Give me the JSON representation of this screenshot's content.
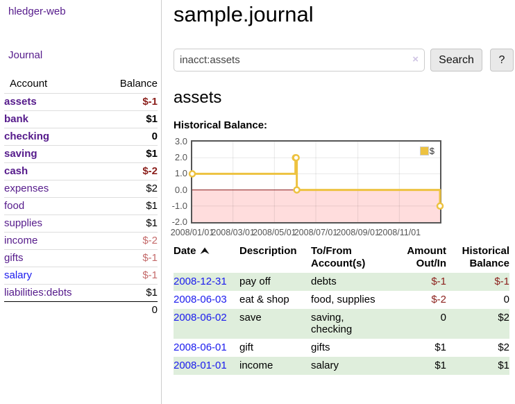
{
  "app": {
    "brand": "hledger-web"
  },
  "sidebar": {
    "journal_link": "Journal",
    "accounts_table": {
      "headers": {
        "account": "Account",
        "balance": "Balance"
      },
      "rows": [
        {
          "account": "assets",
          "balance": "$-1"
        },
        {
          "account": "bank",
          "balance": "$1"
        },
        {
          "account": "checking",
          "balance": "0"
        },
        {
          "account": "saving",
          "balance": "$1"
        },
        {
          "account": "cash",
          "balance": "$-2"
        },
        {
          "account": "expenses",
          "balance": "$2"
        },
        {
          "account": "food",
          "balance": "$1"
        },
        {
          "account": "supplies",
          "balance": "$1"
        },
        {
          "account": "income",
          "balance": "$-2"
        },
        {
          "account": "gifts",
          "balance": "$-1"
        },
        {
          "account": "salary",
          "balance": "$-1"
        },
        {
          "account": "liabilities:debts",
          "balance": "$1"
        }
      ],
      "total": "0"
    }
  },
  "main": {
    "title": "sample.journal",
    "search": {
      "value": "inacct:assets",
      "clear_icon": "×",
      "button": "Search",
      "help_button": "?"
    },
    "account_heading": "assets",
    "chart_heading": "Historical Balance:"
  },
  "chart_data": {
    "type": "line",
    "style": "step-post",
    "title": "Historical Balance:",
    "series": [
      {
        "name": "$",
        "color": "#edc240",
        "points": [
          [
            "2008/01/01",
            1
          ],
          [
            "2008/06/01",
            2
          ],
          [
            "2008/06/02",
            2
          ],
          [
            "2008/06/03",
            0
          ],
          [
            "2008/12/31",
            -1
          ]
        ]
      }
    ],
    "x_ticks": [
      "2008/01/01",
      "2008/03/01",
      "2008/05/01",
      "2008/07/01",
      "2008/09/01",
      "2008/11/01"
    ],
    "y_ticks": [
      3.0,
      2.0,
      1.0,
      0.0,
      -1.0,
      -2.0
    ],
    "xlim": [
      "2008/01/01",
      "2008/12/31"
    ],
    "ylim": [
      -2,
      3
    ],
    "grid": true,
    "legend_position": "top-right",
    "negative_region_color": "#ffdddd",
    "zero_line_color": "#8b1a1a"
  },
  "register_table": {
    "headers": {
      "date": "Date",
      "description": "Description",
      "tofrom": "To/From\nAccount(s)",
      "amount": "Amount\nOut/In",
      "balance": "Historical\nBalance"
    },
    "rows": [
      {
        "date": "2008-12-31",
        "description": "pay off",
        "tofrom": "debts",
        "amount": "$-1",
        "balance": "$-1"
      },
      {
        "date": "2008-06-03",
        "description": "eat & shop",
        "tofrom": "food, supplies",
        "amount": "$-2",
        "balance": "0"
      },
      {
        "date": "2008-06-02",
        "description": "save",
        "tofrom": "saving,\nchecking",
        "amount": "0",
        "balance": "$2"
      },
      {
        "date": "2008-06-01",
        "description": "gift",
        "tofrom": "gifts",
        "amount": "$1",
        "balance": "$2"
      },
      {
        "date": "2008-01-01",
        "description": "income",
        "tofrom": "salary",
        "amount": "$1",
        "balance": "$1"
      }
    ]
  },
  "colors": {
    "link_purple": "#551a8b",
    "link_blue": "#1a1aee",
    "negative_strong": "#8b1f1b",
    "negative_muted": "#c46a6a",
    "row_stripe_green": "#dfeedc",
    "chart_line": "#edc240",
    "chart_negative_region": "#ffdddd",
    "chart_zero_line": "#8b1a1a"
  }
}
